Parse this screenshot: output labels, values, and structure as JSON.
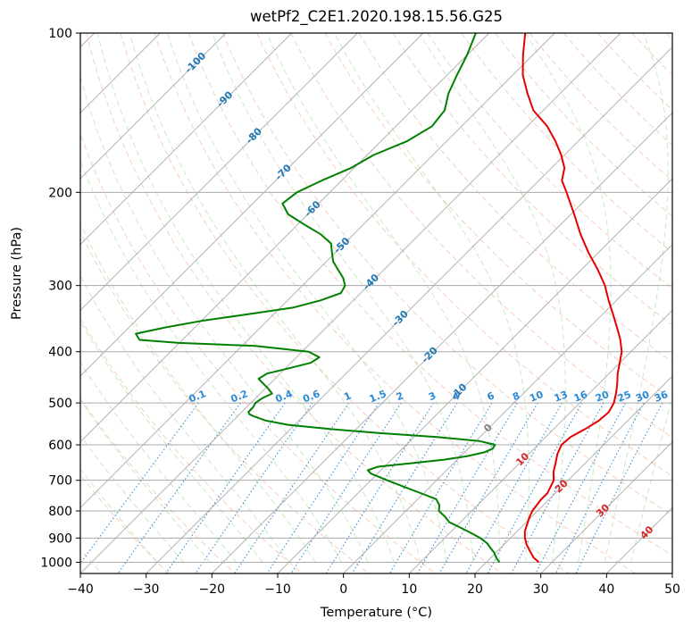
{
  "chart_data": {
    "type": "line",
    "title": "wetPf2_C2E1.2020.198.15.56.G25",
    "xlabel": "Temperature (°C)",
    "ylabel": "Pressure (hPa)",
    "xlim": [
      -40,
      50
    ],
    "ylim": [
      1050,
      100
    ],
    "y_scale": "log",
    "grid": true,
    "x_ticks": [
      -40,
      -30,
      -20,
      -10,
      0,
      10,
      20,
      30,
      40,
      50
    ],
    "y_ticks": [
      100,
      200,
      300,
      400,
      500,
      600,
      700,
      800,
      900,
      1000
    ],
    "background_lines": {
      "isotherms": {
        "color": "#aaaaaa"
      },
      "dry_adiabats": {
        "color": "#f4a582",
        "labels": [
          "-100",
          "-90",
          "-80",
          "-70",
          "-60",
          "-50",
          "-40",
          "-30",
          "-20",
          "-10",
          "0",
          "10",
          "20",
          "30",
          "40"
        ]
      },
      "moist_adiabats": {
        "color": "#a6d8a0"
      },
      "mixing_ratios": {
        "color": "#2a8ad8",
        "labels": [
          "0.1",
          "0.2",
          "0.4",
          "0.6",
          "1",
          "1.5",
          "2",
          "3",
          "4",
          "6",
          "8",
          "10",
          "13",
          "16",
          "20",
          "25",
          "30",
          "36"
        ]
      }
    },
    "series": [
      {
        "color": "#e60000",
        "pressure": [
          1000,
          980,
          950,
          925,
          900,
          875,
          850,
          825,
          800,
          780,
          760,
          740,
          700,
          675,
          650,
          625,
          600,
          580,
          560,
          540,
          520,
          500,
          480,
          460,
          440,
          420,
          400,
          380,
          360,
          340,
          320,
          300,
          280,
          260,
          240,
          220,
          200,
          190,
          180,
          170,
          160,
          150,
          140,
          130,
          120,
          110,
          100
        ],
        "values": [
          28,
          26.5,
          24.8,
          23.4,
          22.2,
          21.2,
          20.5,
          19.8,
          19.2,
          19.0,
          18.8,
          18.8,
          17.8,
          16.5,
          15.5,
          14.4,
          13.6,
          13.8,
          14.8,
          15.6,
          15.8,
          15.2,
          14.1,
          12.8,
          11.3,
          10.0,
          8.6,
          6.6,
          4.2,
          1.6,
          -1.2,
          -4.0,
          -7.5,
          -11.5,
          -15.5,
          -19.5,
          -24.0,
          -26.5,
          -28.0,
          -30.5,
          -33.5,
          -37.0,
          -41.5,
          -45.0,
          -48.5,
          -51.5,
          -54.5
        ]
      },
      {
        "color": "#008000",
        "pressure": [
          1000,
          980,
          960,
          940,
          920,
          900,
          880,
          860,
          840,
          820,
          800,
          780,
          760,
          740,
          720,
          700,
          680,
          670,
          660,
          650,
          640,
          630,
          620,
          610,
          600,
          590,
          580,
          570,
          560,
          550,
          540,
          530,
          525,
          520,
          510,
          500,
          490,
          480,
          470,
          460,
          450,
          440,
          430,
          420,
          410,
          400,
          390,
          385,
          380,
          370,
          360,
          350,
          340,
          330,
          320,
          310,
          300,
          290,
          280,
          270,
          260,
          250,
          240,
          230,
          220,
          210,
          200,
          190,
          180,
          170,
          160,
          150,
          140,
          130,
          120,
          110,
          100
        ],
        "values": [
          22,
          20.8,
          19.8,
          18.5,
          17.2,
          15.4,
          13.2,
          10.8,
          8.3,
          6.8,
          5.0,
          4.2,
          2.8,
          -0.5,
          -4.0,
          -7.5,
          -11.0,
          -12.0,
          -11.0,
          -6.5,
          -2.0,
          1.0,
          3.0,
          3.7,
          3.5,
          0.5,
          -6.5,
          -16.0,
          -24.0,
          -31.0,
          -35.0,
          -37.5,
          -38.5,
          -39.0,
          -39.0,
          -39.3,
          -39.0,
          -38.2,
          -39.5,
          -41.0,
          -42.5,
          -42.0,
          -39.5,
          -37.0,
          -36.5,
          -39.0,
          -48.0,
          -60.0,
          -66.5,
          -68.0,
          -64.5,
          -60.0,
          -54.0,
          -48.0,
          -45.0,
          -43.0,
          -43.5,
          -45.0,
          -47.0,
          -49.0,
          -50.5,
          -52.0,
          -55.0,
          -59.0,
          -63.0,
          -65.5,
          -65.0,
          -63.0,
          -60.5,
          -59.0,
          -56.0,
          -54.5,
          -55.0,
          -57.0,
          -58.5,
          -60.0,
          -62.0
        ]
      }
    ]
  }
}
